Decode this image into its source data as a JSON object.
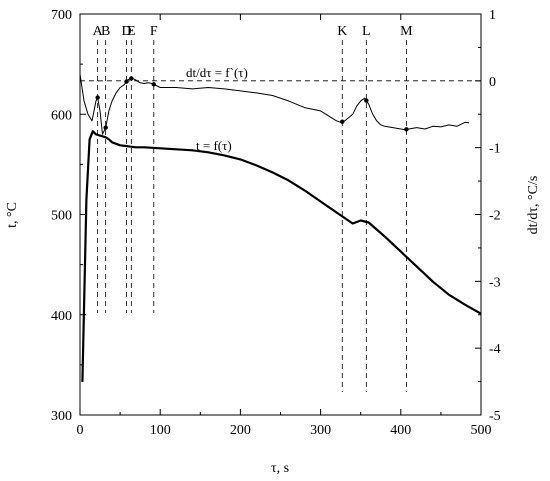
{
  "chart_data": {
    "type": "line",
    "xlabel": "τ, s",
    "ylabel_left": "t, °C",
    "ylabel_right": "dt/dτ, °C/s",
    "xlim": [
      0,
      500
    ],
    "ylim_left": [
      300,
      700
    ],
    "ylim_right": [
      -5,
      1
    ],
    "x_ticks": [
      0,
      100,
      200,
      300,
      400,
      500
    ],
    "y_ticks_left": [
      300,
      400,
      500,
      600,
      700
    ],
    "y_ticks_right": [
      -5,
      -4,
      -3,
      -2,
      -1,
      0,
      1
    ],
    "grid": false,
    "zero_reference_line": 0,
    "series": [
      {
        "name": "t = f(τ)",
        "axis": "left",
        "x": [
          3,
          8,
          12,
          16,
          20,
          24,
          28,
          32,
          36,
          40,
          50,
          60,
          70,
          80,
          100,
          120,
          140,
          160,
          180,
          200,
          220,
          240,
          260,
          280,
          300,
          320,
          340,
          350,
          360,
          370,
          380,
          400,
          420,
          440,
          460,
          480,
          500
        ],
        "y": [
          333,
          515,
          575,
          583,
          580,
          579,
          578,
          577,
          575,
          572,
          569,
          568,
          567,
          567,
          566,
          565,
          564,
          562,
          559,
          555,
          549,
          542,
          534,
          524,
          513,
          502,
          491,
          494,
          492,
          485,
          478,
          463,
          448,
          433,
          420,
          410,
          401
        ]
      },
      {
        "name": "dt/dτ = f`(τ)",
        "axis": "right",
        "x": [
          0,
          5,
          10,
          15,
          20,
          22,
          25,
          28,
          32,
          36,
          40,
          45,
          50,
          55,
          60,
          65,
          70,
          75,
          80,
          85,
          90,
          100,
          120,
          140,
          160,
          180,
          200,
          220,
          240,
          260,
          280,
          300,
          320,
          325,
          330,
          335,
          340,
          345,
          350,
          355,
          360,
          365,
          370,
          375,
          380,
          390,
          400,
          405,
          410,
          420,
          430,
          440,
          450,
          460,
          470,
          480,
          485
        ],
        "y": [
          0.1,
          -0.3,
          -0.5,
          -0.6,
          -0.3,
          -0.25,
          -0.45,
          -0.8,
          -0.7,
          -0.45,
          -0.3,
          -0.18,
          -0.1,
          -0.06,
          0.02,
          0.04,
          0.01,
          -0.03,
          -0.04,
          -0.03,
          -0.04,
          -0.1,
          -0.1,
          -0.12,
          -0.1,
          -0.12,
          -0.15,
          -0.18,
          -0.22,
          -0.3,
          -0.4,
          -0.45,
          -0.6,
          -0.62,
          -0.6,
          -0.55,
          -0.5,
          -0.38,
          -0.3,
          -0.26,
          -0.35,
          -0.5,
          -0.6,
          -0.66,
          -0.68,
          -0.7,
          -0.72,
          -0.73,
          -0.72,
          -0.7,
          -0.72,
          -0.68,
          -0.69,
          -0.66,
          -0.68,
          -0.62,
          -0.63
        ]
      }
    ],
    "markers": [
      {
        "label": "A",
        "x": 22
      },
      {
        "label": "B",
        "x": 32
      },
      {
        "label": "D",
        "x": 58
      },
      {
        "label": "E",
        "x": 64
      },
      {
        "label": "F",
        "x": 92
      },
      {
        "label": "K",
        "x": 327
      },
      {
        "label": "L",
        "x": 357
      },
      {
        "label": "M",
        "x": 407
      }
    ],
    "annotations": [
      {
        "text": "dt/dτ = f`(τ)"
      },
      {
        "text": "t = f(τ)"
      }
    ]
  }
}
